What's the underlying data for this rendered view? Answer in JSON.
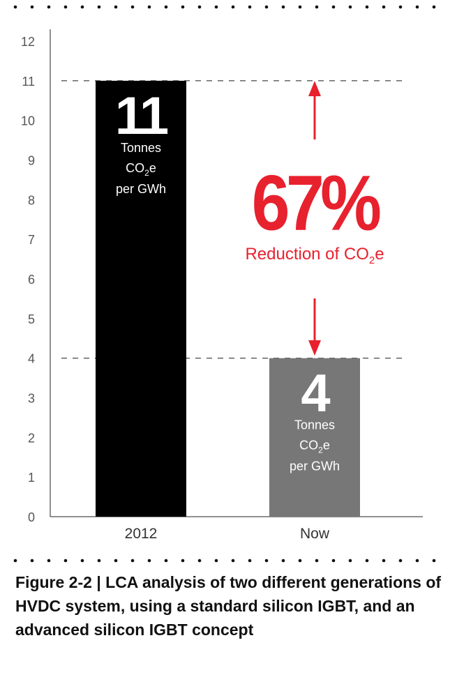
{
  "chart_data": {
    "type": "bar",
    "categories": [
      "2012",
      "Now"
    ],
    "values": [
      11,
      4
    ],
    "bar_colors": [
      "#000000",
      "#777777"
    ],
    "ylim": [
      0,
      12
    ],
    "yticks": [
      "0",
      "1",
      "2",
      "3",
      "4",
      "5",
      "6",
      "7",
      "8",
      "9",
      "10",
      "11",
      "12"
    ],
    "grid": false,
    "reference_lines": [
      11,
      4
    ],
    "bar_labels": [
      {
        "value": "11",
        "lines": [
          "Tonnes",
          "CO",
          "per GWh"
        ]
      },
      {
        "value": "4",
        "lines": [
          "Tonnes",
          "CO",
          "per GWh"
        ]
      }
    ],
    "unit_sub": "2",
    "unit_suffix": "e",
    "annotation": {
      "percent": "67%",
      "text": "Reduction of CO",
      "sub": "2",
      "suffix": "e",
      "color": "#e8212e"
    }
  },
  "caption": {
    "figure": "Figure 2-2",
    "separator": "|",
    "text": "LCA analysis of two different generations of HVDC system, using a standard silicon IGBT, and an advanced silicon IGBT concept"
  }
}
